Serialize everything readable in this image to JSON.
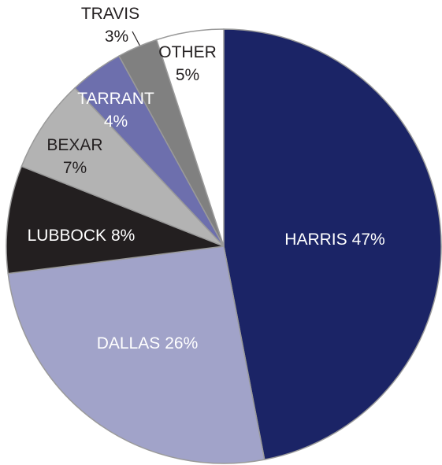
{
  "chart_data": {
    "type": "pie",
    "categories": [
      "HARRIS",
      "DALLAS",
      "LUBBOCK",
      "BEXAR",
      "TARRANT",
      "TRAVIS",
      "OTHER"
    ],
    "values": [
      47,
      26,
      8,
      7,
      4,
      3,
      5
    ],
    "value_labels": [
      "47%",
      "26%",
      "8%",
      "7%",
      "4%",
      "3%",
      "5%"
    ],
    "colors": [
      "#1b2466",
      "#a1a3c9",
      "#231f20",
      "#b3b3b3",
      "#6d6fad",
      "#808080",
      "#ffffff"
    ]
  }
}
